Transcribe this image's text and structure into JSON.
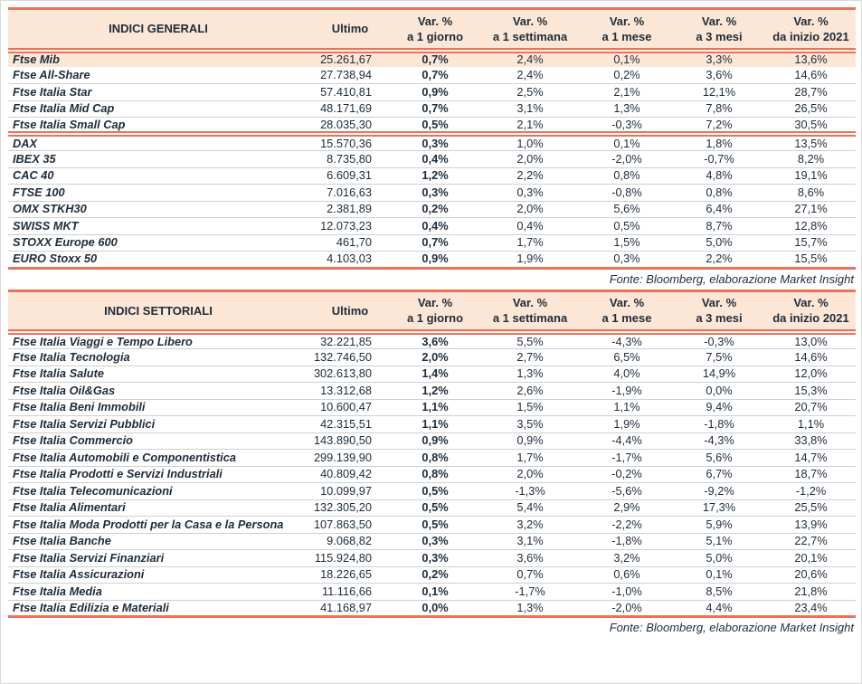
{
  "colors": {
    "accent": "#EF7058",
    "header_bg": "#FCE6D5",
    "row_highlight_bg": "#FCE6D5",
    "text": "#1D2C3B",
    "separator": "#CFCFCF"
  },
  "fonte_label": "Fonte: Bloomberg, elaborazione Market Insight",
  "tables": [
    {
      "title": "INDICI GENERALI",
      "col_ultimo": "Ultimo",
      "var_headers": [
        {
          "line1": "Var. %",
          "line2": "a 1 giorno"
        },
        {
          "line1": "Var. %",
          "line2": "a 1 settimana"
        },
        {
          "line1": "Var. %",
          "line2": "a 1 mese"
        },
        {
          "line1": "Var. %",
          "line2": "a 3 mesi"
        },
        {
          "line1": "Var. %",
          "line2": "da inizio 2021"
        }
      ],
      "groups": [
        {
          "rows": [
            {
              "name": "Ftse Mib",
              "ultimo": "25.261,67",
              "vars": [
                "0,7%",
                "2,4%",
                "0,1%",
                "3,3%",
                "13,6%"
              ],
              "highlight": true
            },
            {
              "name": "Ftse All-Share",
              "ultimo": "27.738,94",
              "vars": [
                "0,7%",
                "2,4%",
                "0,2%",
                "3,6%",
                "14,6%"
              ]
            },
            {
              "name": "Ftse Italia Star",
              "ultimo": "57.410,81",
              "vars": [
                "0,9%",
                "2,5%",
                "2,1%",
                "12,1%",
                "28,7%"
              ]
            },
            {
              "name": "Ftse Italia Mid Cap",
              "ultimo": "48.171,69",
              "vars": [
                "0,7%",
                "3,1%",
                "1,3%",
                "7,8%",
                "26,5%"
              ]
            },
            {
              "name": "Ftse Italia Small Cap",
              "ultimo": "28.035,30",
              "vars": [
                "0,5%",
                "2,1%",
                "-0,3%",
                "7,2%",
                "30,5%"
              ]
            }
          ]
        },
        {
          "rows": [
            {
              "name": "DAX",
              "ultimo": "15.570,36",
              "vars": [
                "0,3%",
                "1,0%",
                "0,1%",
                "1,8%",
                "13,5%"
              ]
            },
            {
              "name": "IBEX 35",
              "ultimo": "8.735,80",
              "vars": [
                "0,4%",
                "2,0%",
                "-2,0%",
                "-0,7%",
                "8,2%"
              ]
            },
            {
              "name": "CAC 40",
              "ultimo": "6.609,31",
              "vars": [
                "1,2%",
                "2,2%",
                "0,8%",
                "4,8%",
                "19,1%"
              ]
            },
            {
              "name": "FTSE 100",
              "ultimo": "7.016,63",
              "vars": [
                "0,3%",
                "0,3%",
                "-0,8%",
                "0,8%",
                "8,6%"
              ]
            },
            {
              "name": "OMX STKH30",
              "ultimo": "2.381,89",
              "vars": [
                "0,2%",
                "2,0%",
                "5,6%",
                "6,4%",
                "27,1%"
              ]
            },
            {
              "name": "SWISS MKT",
              "ultimo": "12.073,23",
              "vars": [
                "0,4%",
                "0,4%",
                "0,5%",
                "8,7%",
                "12,8%"
              ]
            },
            {
              "name": "STOXX Europe 600",
              "ultimo": "461,70",
              "vars": [
                "0,7%",
                "1,7%",
                "1,5%",
                "5,0%",
                "15,7%"
              ]
            },
            {
              "name": "EURO Stoxx 50",
              "ultimo": "4.103,03",
              "vars": [
                "0,9%",
                "1,9%",
                "0,3%",
                "2,2%",
                "15,5%"
              ]
            }
          ]
        }
      ],
      "fonte": "Fonte: Bloomberg, elaborazione Market Insight"
    },
    {
      "title": "INDICI SETTORIALI",
      "col_ultimo": "Ultimo",
      "var_headers": [
        {
          "line1": "Var. %",
          "line2": "a 1 giorno"
        },
        {
          "line1": "Var. %",
          "line2": "a 1 settimana"
        },
        {
          "line1": "Var. %",
          "line2": "a 1 mese"
        },
        {
          "line1": "Var. %",
          "line2": "a 3 mesi"
        },
        {
          "line1": "Var. %",
          "line2": "da inizio 2021"
        }
      ],
      "groups": [
        {
          "rows": [
            {
              "name": "Ftse Italia Viaggi e Tempo Libero",
              "ultimo": "32.221,85",
              "vars": [
                "3,6%",
                "5,5%",
                "-4,3%",
                "-0,3%",
                "13,0%"
              ]
            },
            {
              "name": "Ftse Italia Tecnologia",
              "ultimo": "132.746,50",
              "vars": [
                "2,0%",
                "2,7%",
                "6,5%",
                "7,5%",
                "14,6%"
              ]
            },
            {
              "name": "Ftse Italia Salute",
              "ultimo": "302.613,80",
              "vars": [
                "1,4%",
                "1,3%",
                "4,0%",
                "14,9%",
                "12,0%"
              ]
            },
            {
              "name": "Ftse Italia Oil&Gas",
              "ultimo": "13.312,68",
              "vars": [
                "1,2%",
                "2,6%",
                "-1,9%",
                "0,0%",
                "15,3%"
              ]
            },
            {
              "name": "Ftse Italia Beni Immobili",
              "ultimo": "10.600,47",
              "vars": [
                "1,1%",
                "1,5%",
                "1,1%",
                "9,4%",
                "20,7%"
              ]
            },
            {
              "name": "Ftse Italia Servizi Pubblici",
              "ultimo": "42.315,51",
              "vars": [
                "1,1%",
                "3,5%",
                "1,9%",
                "-1,8%",
                "1,1%"
              ]
            },
            {
              "name": "Ftse Italia Commercio",
              "ultimo": "143.890,50",
              "vars": [
                "0,9%",
                "0,9%",
                "-4,4%",
                "-4,3%",
                "33,8%"
              ]
            },
            {
              "name": "Ftse Italia Automobili e Componentistica",
              "ultimo": "299.139,90",
              "vars": [
                "0,8%",
                "1,7%",
                "-1,7%",
                "5,6%",
                "14,7%"
              ]
            },
            {
              "name": "Ftse Italia Prodotti e Servizi Industriali",
              "ultimo": "40.809,42",
              "vars": [
                "0,8%",
                "2,0%",
                "-0,2%",
                "6,7%",
                "18,7%"
              ]
            },
            {
              "name": "Ftse Italia Telecomunicazioni",
              "ultimo": "10.099,97",
              "vars": [
                "0,5%",
                "-1,3%",
                "-5,6%",
                "-9,2%",
                "-1,2%"
              ]
            },
            {
              "name": "Ftse Italia Alimentari",
              "ultimo": "132.305,20",
              "vars": [
                "0,5%",
                "5,4%",
                "2,9%",
                "17,3%",
                "25,5%"
              ]
            },
            {
              "name": "Ftse Italia Moda Prodotti per la Casa e la Persona",
              "ultimo": "107.863,50",
              "vars": [
                "0,5%",
                "3,2%",
                "-2,2%",
                "5,9%",
                "13,9%"
              ]
            },
            {
              "name": "Ftse Italia Banche",
              "ultimo": "9.068,82",
              "vars": [
                "0,3%",
                "3,1%",
                "-1,8%",
                "5,1%",
                "22,7%"
              ]
            },
            {
              "name": "Ftse Italia Servizi Finanziari",
              "ultimo": "115.924,80",
              "vars": [
                "0,3%",
                "3,6%",
                "3,2%",
                "5,0%",
                "20,1%"
              ]
            },
            {
              "name": "Ftse Italia Assicurazioni",
              "ultimo": "18.226,65",
              "vars": [
                "0,2%",
                "0,7%",
                "0,6%",
                "0,1%",
                "20,6%"
              ]
            },
            {
              "name": "Ftse Italia Media",
              "ultimo": "11.116,66",
              "vars": [
                "0,1%",
                "-1,7%",
                "-1,0%",
                "8,5%",
                "21,8%"
              ]
            },
            {
              "name": "Ftse Italia Edilizia e Materiali",
              "ultimo": "41.168,97",
              "vars": [
                "0,0%",
                "1,3%",
                "-2,0%",
                "4,4%",
                "23,4%"
              ]
            }
          ]
        }
      ],
      "fonte": "Fonte: Bloomberg, elaborazione Market Insight"
    }
  ]
}
